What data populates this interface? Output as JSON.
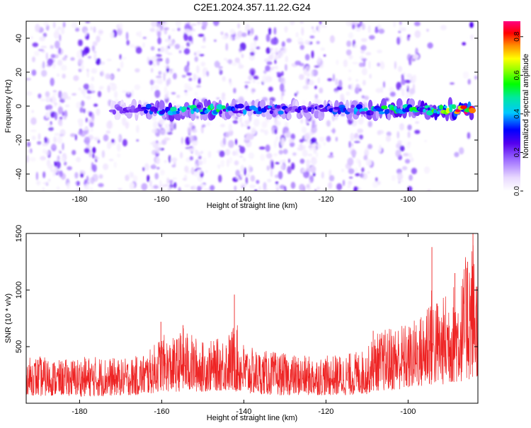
{
  "title": "C2E1.2024.357.11.22.G24",
  "colors": {
    "heat_low": "#ffffff",
    "snr_line": "#ee2222"
  },
  "chart_data": [
    {
      "type": "heatmap",
      "title": "C2E1.2024.357.11.22.G24",
      "xlabel": "Height of straight line (km)",
      "ylabel": "Frequency (Hz)",
      "xlim": [
        -193,
        -83
      ],
      "ylim": [
        -50,
        50
      ],
      "xticks": [
        -180,
        -160,
        -140,
        -120,
        -100
      ],
      "yticks": [
        40,
        20,
        0,
        -20,
        -40
      ],
      "colorbar": {
        "label": "Normalized spectral amplitude",
        "range": [
          0,
          0.88
        ],
        "ticks": [
          0.0,
          0.2,
          0.4,
          0.6,
          0.8
        ]
      },
      "band": {
        "frequency_hz": -2,
        "x": [
          -172,
          -166,
          -162,
          -158,
          -154,
          -150,
          -146,
          -142,
          -138,
          -134,
          -130,
          -126,
          -122,
          -118,
          -114,
          -110,
          -106,
          -102,
          -98,
          -94,
          -90,
          -86,
          -84
        ],
        "amplitude": [
          0.15,
          0.25,
          0.35,
          0.45,
          0.4,
          0.45,
          0.45,
          0.35,
          0.3,
          0.35,
          0.3,
          0.25,
          0.25,
          0.3,
          0.3,
          0.4,
          0.45,
          0.45,
          0.45,
          0.5,
          0.6,
          0.75,
          0.85
        ]
      }
    },
    {
      "type": "line",
      "xlabel": "Height of straight line (km)",
      "ylabel": "SNR (10 * v/v)",
      "xlim": [
        -193,
        -83
      ],
      "ylim": [
        0,
        1500
      ],
      "xticks": [
        -180,
        -160,
        -140,
        -120,
        -100
      ],
      "yticks": [
        500,
        1000,
        1500
      ],
      "x": [
        -193,
        -190,
        -185,
        -180,
        -175,
        -170,
        -166,
        -163,
        -161,
        -160,
        -158,
        -156,
        -155,
        -153,
        -150,
        -147,
        -145,
        -143,
        -142,
        -141,
        -139,
        -136,
        -133,
        -130,
        -125,
        -120,
        -115,
        -110,
        -109,
        -108,
        -106,
        -104,
        -102,
        -100,
        -98,
        -96,
        -95,
        -94,
        -92,
        -90,
        -88,
        -87,
        -86,
        -85,
        -84,
        -83
      ],
      "envelope_low": [
        80,
        60,
        70,
        60,
        60,
        70,
        70,
        80,
        100,
        110,
        100,
        100,
        110,
        100,
        100,
        110,
        110,
        100,
        100,
        90,
        80,
        80,
        70,
        70,
        70,
        70,
        70,
        80,
        100,
        110,
        110,
        110,
        120,
        120,
        140,
        140,
        150,
        150,
        160,
        170,
        180,
        190,
        200,
        200,
        220,
        230
      ],
      "envelope_high": [
        400,
        420,
        380,
        410,
        420,
        390,
        420,
        470,
        560,
        620,
        570,
        600,
        680,
        620,
        550,
        560,
        600,
        650,
        770,
        580,
        500,
        470,
        460,
        440,
        420,
        420,
        440,
        480,
        560,
        620,
        650,
        690,
        720,
        700,
        760,
        820,
        1100,
        1000,
        900,
        1050,
        1080,
        1100,
        1300,
        1450,
        1500,
        1100
      ],
      "peaks": [
        {
          "x": -160.2,
          "y": 720
        },
        {
          "x": -154.8,
          "y": 690
        },
        {
          "x": -142.3,
          "y": 960
        },
        {
          "x": -108.5,
          "y": 640
        },
        {
          "x": -94.2,
          "y": 1380
        },
        {
          "x": -88.6,
          "y": 1150
        },
        {
          "x": -85.5,
          "y": 1250
        },
        {
          "x": -84.2,
          "y": 1500
        }
      ]
    }
  ]
}
